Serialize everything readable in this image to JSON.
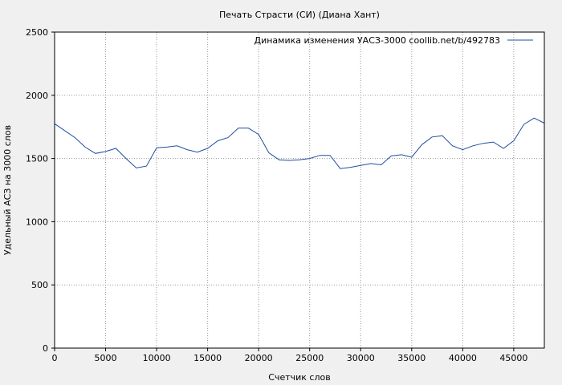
{
  "chart_data": {
    "type": "line",
    "title": "Печать Страсти (СИ) (Диана Хант)",
    "xlabel": "Счетчик слов",
    "ylabel": "Удельный АСЗ на 3000 слов",
    "xlim": [
      0,
      48000
    ],
    "ylim": [
      0,
      2500
    ],
    "xticks": [
      0,
      5000,
      10000,
      15000,
      20000,
      25000,
      30000,
      35000,
      40000,
      45000
    ],
    "yticks": [
      0,
      500,
      1000,
      1500,
      2000,
      2500
    ],
    "grid": true,
    "legend_position": "top-right",
    "series": [
      {
        "name": "Динамика изменения УАСЗ-3000  coollib.net/b/492783",
        "color": "#1f4fa0",
        "x": [
          0,
          1000,
          2000,
          3000,
          4000,
          5000,
          6000,
          7000,
          8000,
          9000,
          10000,
          11000,
          12000,
          13000,
          14000,
          15000,
          16000,
          17000,
          18000,
          19000,
          20000,
          21000,
          22000,
          23000,
          24000,
          25000,
          26000,
          27000,
          28000,
          29000,
          30000,
          31000,
          32000,
          33000,
          34000,
          35000,
          36000,
          37000,
          38000,
          39000,
          40000,
          41000,
          42000,
          43000,
          44000,
          45000,
          46000,
          47000,
          48000
        ],
        "y": [
          1775,
          1720,
          1665,
          1590,
          1540,
          1555,
          1580,
          1500,
          1425,
          1440,
          1585,
          1590,
          1600,
          1570,
          1550,
          1580,
          1640,
          1665,
          1740,
          1740,
          1690,
          1545,
          1490,
          1485,
          1490,
          1500,
          1525,
          1525,
          1420,
          1430,
          1445,
          1460,
          1450,
          1520,
          1530,
          1510,
          1610,
          1670,
          1680,
          1600,
          1570,
          1600,
          1620,
          1630,
          1580,
          1640,
          1770,
          1820,
          1780
        ]
      }
    ]
  }
}
